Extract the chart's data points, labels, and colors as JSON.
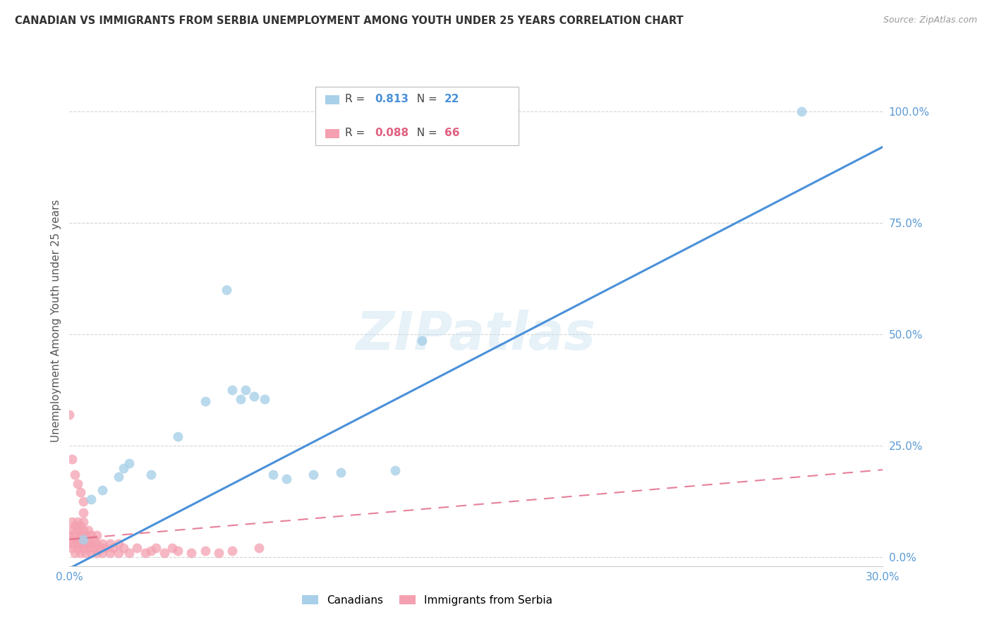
{
  "title": "CANADIAN VS IMMIGRANTS FROM SERBIA UNEMPLOYMENT AMONG YOUTH UNDER 25 YEARS CORRELATION CHART",
  "source": "Source: ZipAtlas.com",
  "ylabel": "Unemployment Among Youth under 25 years",
  "xlim": [
    0.0,
    0.3
  ],
  "ylim": [
    -0.02,
    1.08
  ],
  "yticks": [
    0.0,
    0.25,
    0.5,
    0.75,
    1.0
  ],
  "ytick_labels": [
    "0.0%",
    "25.0%",
    "50.0%",
    "75.0%",
    "100.0%"
  ],
  "xticks": [
    0.0,
    0.05,
    0.1,
    0.15,
    0.2,
    0.25,
    0.3
  ],
  "xtick_labels": [
    "0.0%",
    "",
    "",
    "",
    "",
    "",
    "30.0%"
  ],
  "background_color": "#ffffff",
  "grid_color": "#d0d0d0",
  "watermark": "ZIPatlas",
  "canadians_x": [
    0.005,
    0.008,
    0.012,
    0.018,
    0.02,
    0.022,
    0.03,
    0.04,
    0.05,
    0.058,
    0.06,
    0.063,
    0.065,
    0.068,
    0.072,
    0.075,
    0.08,
    0.09,
    0.1,
    0.12,
    0.13,
    0.27
  ],
  "canadians_y": [
    0.04,
    0.13,
    0.15,
    0.18,
    0.2,
    0.21,
    0.185,
    0.27,
    0.35,
    0.6,
    0.375,
    0.355,
    0.375,
    0.36,
    0.355,
    0.185,
    0.175,
    0.185,
    0.19,
    0.195,
    0.485,
    1.0
  ],
  "serbia_x": [
    0.0,
    0.0,
    0.001,
    0.001,
    0.001,
    0.001,
    0.002,
    0.002,
    0.002,
    0.002,
    0.003,
    0.003,
    0.003,
    0.003,
    0.004,
    0.004,
    0.004,
    0.004,
    0.005,
    0.005,
    0.005,
    0.005,
    0.005,
    0.006,
    0.006,
    0.006,
    0.007,
    0.007,
    0.007,
    0.008,
    0.008,
    0.008,
    0.009,
    0.009,
    0.01,
    0.01,
    0.01,
    0.011,
    0.012,
    0.012,
    0.013,
    0.015,
    0.015,
    0.016,
    0.018,
    0.018,
    0.02,
    0.022,
    0.025,
    0.028,
    0.03,
    0.032,
    0.035,
    0.038,
    0.04,
    0.045,
    0.05,
    0.055,
    0.06,
    0.07,
    0.0,
    0.001,
    0.002,
    0.003,
    0.004,
    0.005
  ],
  "serbia_y": [
    0.03,
    0.05,
    0.02,
    0.04,
    0.06,
    0.08,
    0.01,
    0.03,
    0.05,
    0.07,
    0.02,
    0.04,
    0.06,
    0.08,
    0.01,
    0.03,
    0.05,
    0.07,
    0.02,
    0.04,
    0.06,
    0.08,
    0.1,
    0.01,
    0.03,
    0.05,
    0.02,
    0.04,
    0.06,
    0.01,
    0.03,
    0.05,
    0.02,
    0.04,
    0.01,
    0.03,
    0.05,
    0.02,
    0.01,
    0.03,
    0.02,
    0.01,
    0.03,
    0.02,
    0.01,
    0.03,
    0.02,
    0.01,
    0.02,
    0.01,
    0.015,
    0.02,
    0.01,
    0.02,
    0.015,
    0.01,
    0.015,
    0.01,
    0.015,
    0.02,
    0.32,
    0.22,
    0.185,
    0.165,
    0.145,
    0.125
  ],
  "can_color": "#a8d0e8",
  "ser_color": "#f4a0b0",
  "can_line_color": "#4a90d9",
  "ser_line_color": "#e06080",
  "can_R": "0.813",
  "can_N": "22",
  "ser_R": "0.088",
  "ser_N": "66",
  "can_slope": 3.15,
  "can_intercept": -0.025,
  "ser_slope": 0.52,
  "ser_intercept": 0.04,
  "tick_color": "#5b9bd5",
  "title_color": "#333333",
  "source_color": "#999999",
  "ylabel_color": "#555555"
}
